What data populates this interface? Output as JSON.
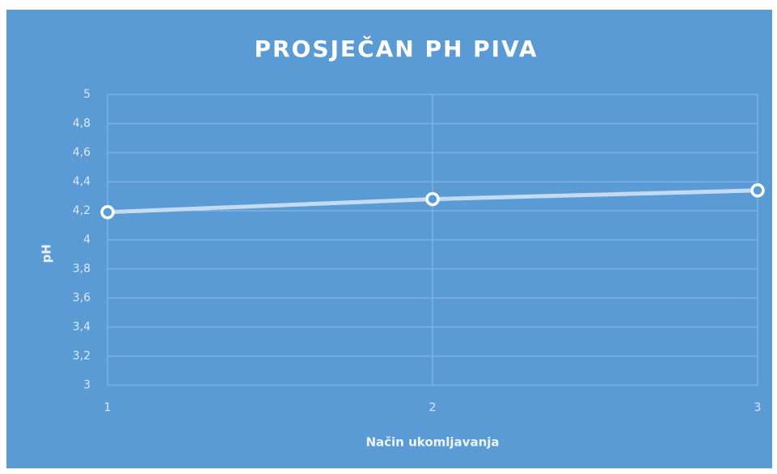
{
  "chart_data": {
    "type": "line",
    "title": "PROSJEČAN PH PIVA",
    "x_label": "Način ukomljavanja",
    "y_label": "pH",
    "x": [
      1,
      2,
      3
    ],
    "series": [
      {
        "name": "pH",
        "color": "#c5daf0",
        "values": [
          4.19,
          4.28,
          4.34
        ]
      }
    ],
    "xlim": [
      1,
      3
    ],
    "xticks": [
      1,
      2,
      3
    ],
    "ylim": [
      3,
      5
    ],
    "yticks": [
      3,
      {
        "value": 3.2,
        "label": "3,2"
      },
      {
        "value": 3.4,
        "label": "3,4"
      },
      {
        "value": 3.6,
        "label": "3,6"
      },
      {
        "value": 3.8,
        "label": "3,8"
      },
      4,
      {
        "value": 4.2,
        "label": "4,2"
      },
      {
        "value": 4.4,
        "label": "4,4"
      },
      {
        "value": 4.6,
        "label": "4,6"
      },
      {
        "value": 4.8,
        "label": "4,8"
      },
      5
    ],
    "grid": true
  }
}
